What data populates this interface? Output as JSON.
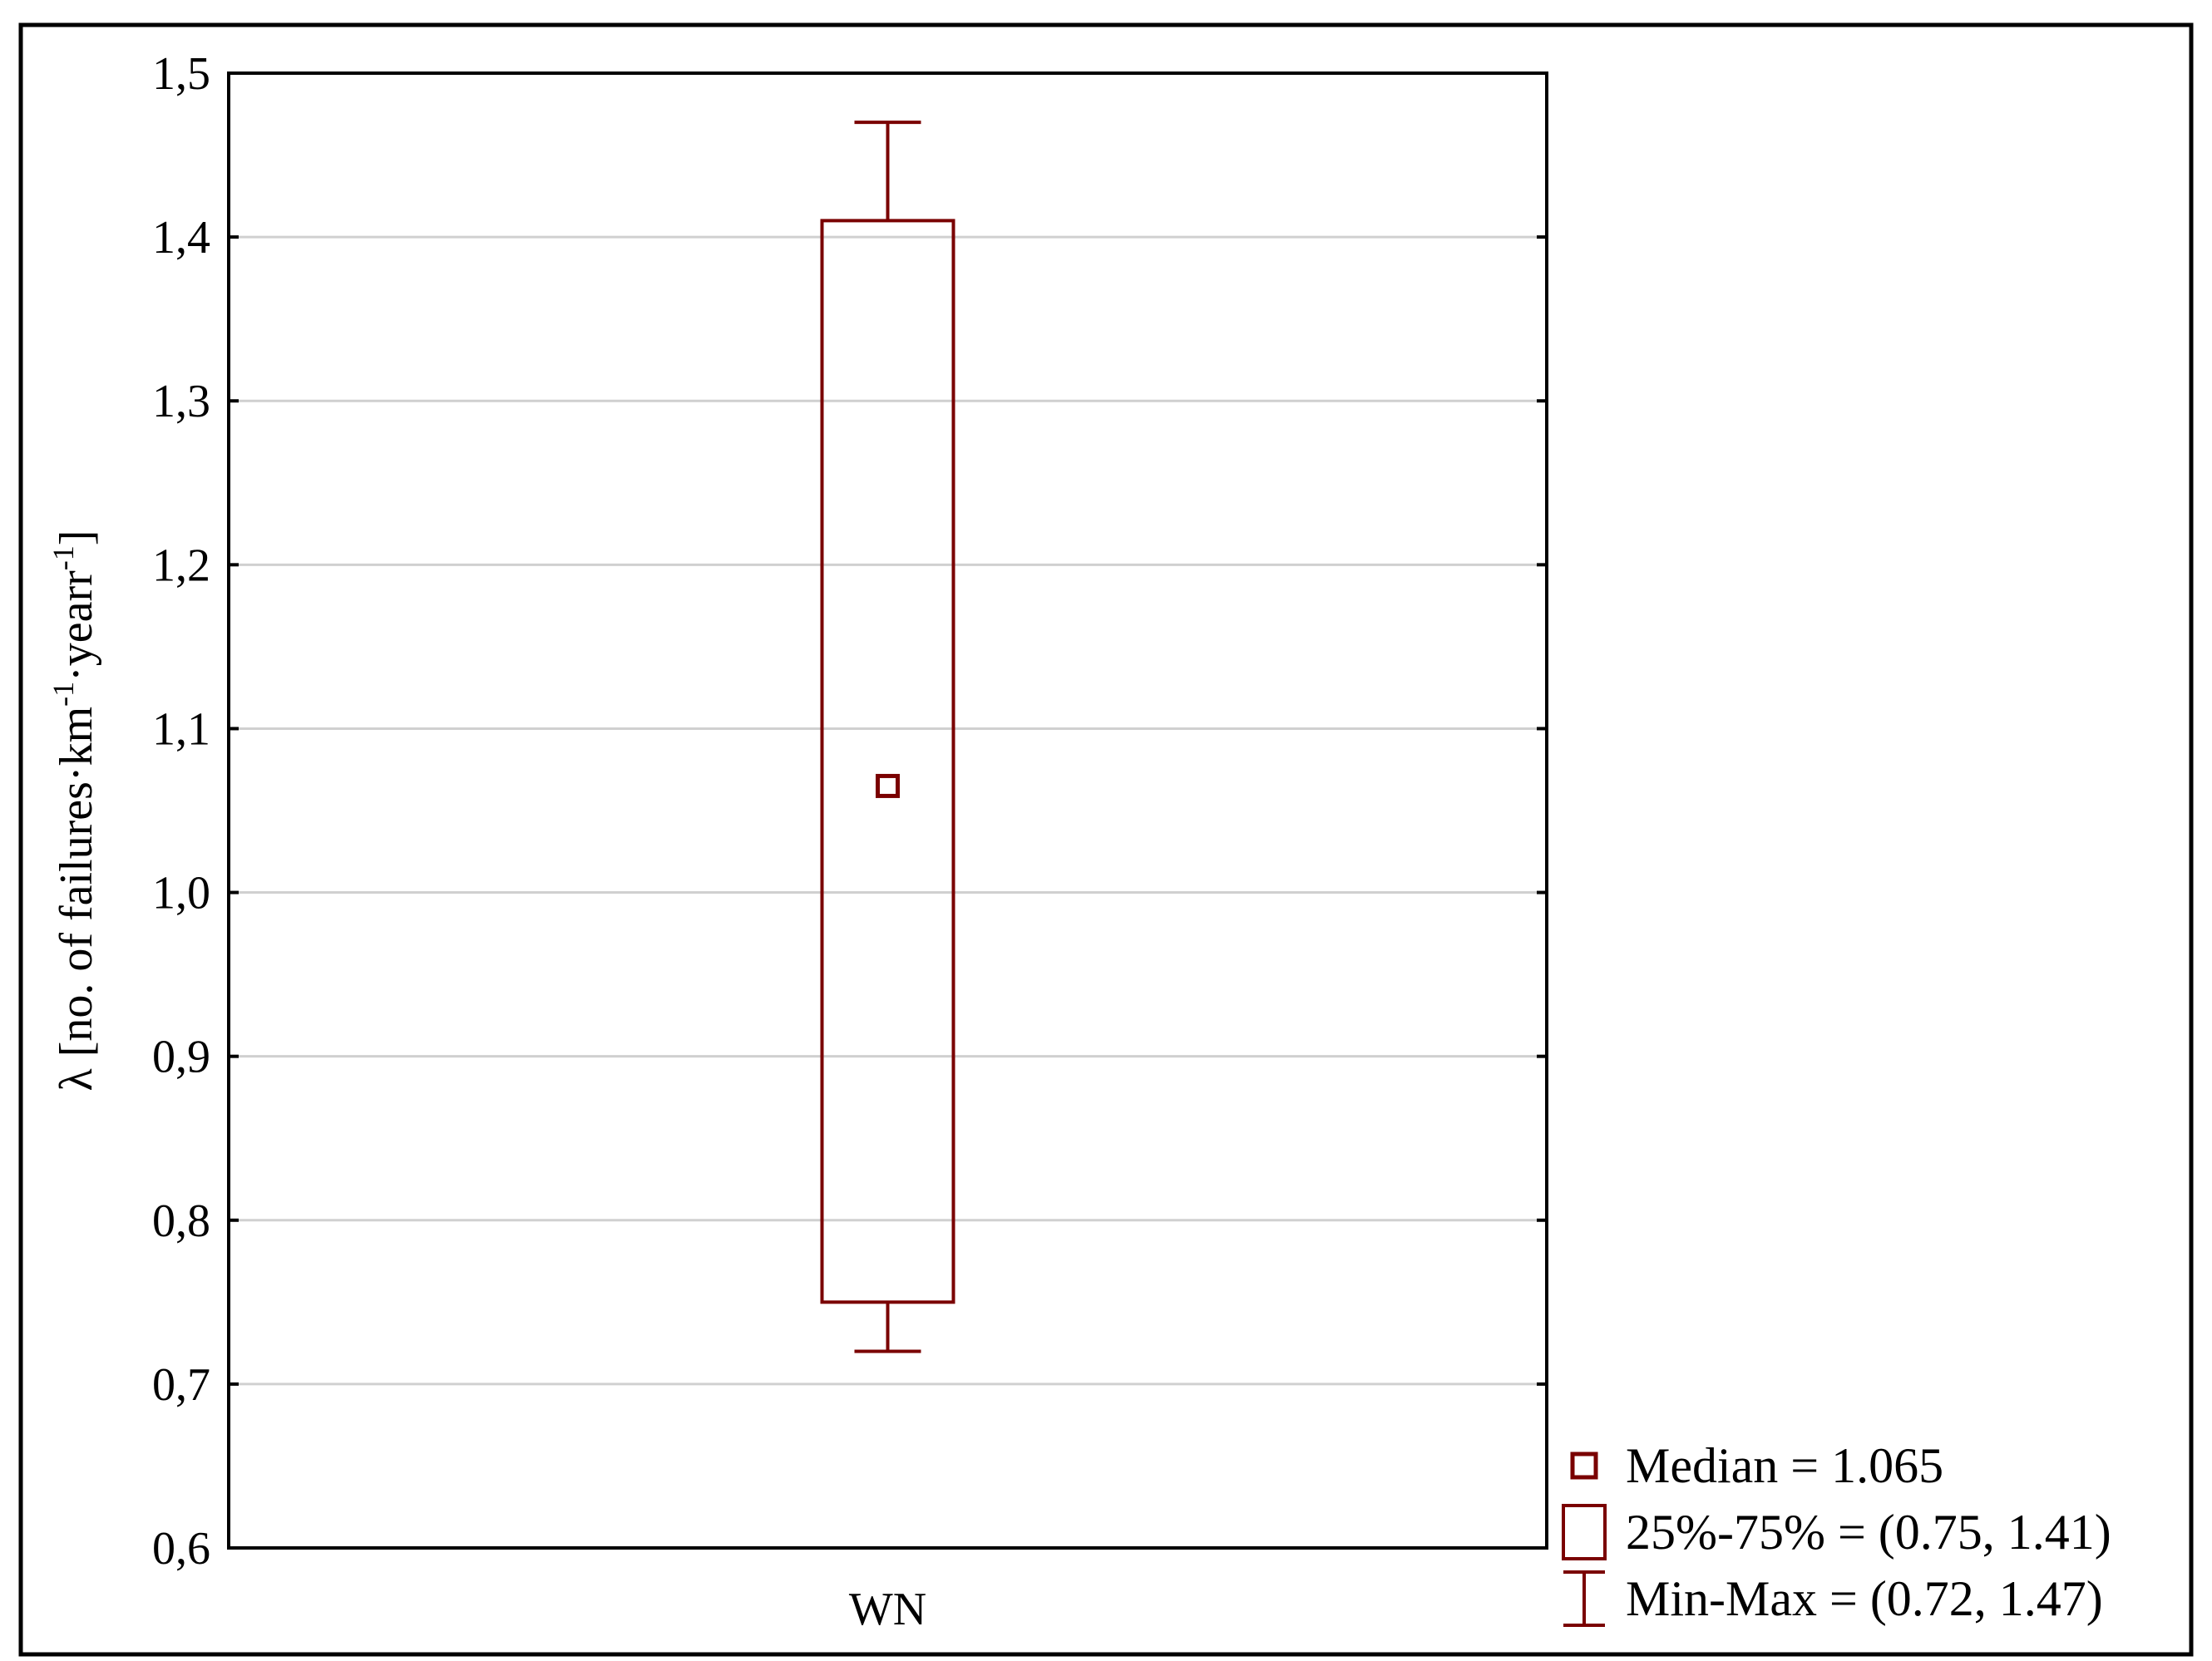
{
  "chart_data": {
    "type": "boxplot",
    "categories": [
      "WN"
    ],
    "series": [
      {
        "category": "WN",
        "min": 0.72,
        "q1": 0.75,
        "median": 1.065,
        "q3": 1.41,
        "max": 1.47
      }
    ],
    "ylabel_prefix": "λ [no. of failures·km",
    "ylabel_sup1": "-1",
    "ylabel_mid": "·yearr",
    "ylabel_sup2": "-1",
    "ylabel_suffix": "]",
    "ylim": [
      0.6,
      1.5
    ],
    "yticks": [
      0.6,
      0.7,
      0.8,
      0.9,
      1.0,
      1.1,
      1.2,
      1.3,
      1.4,
      1.5
    ],
    "ytick_labels": [
      "0,6",
      "0,7",
      "0,8",
      "0,9",
      "1,0",
      "1,1",
      "1,2",
      "1,3",
      "1,4",
      "1,5"
    ],
    "grid": "horizontal",
    "legend": {
      "placement": "bottom-right",
      "entries": [
        {
          "symbol": "median",
          "label": "Median = 1.065"
        },
        {
          "symbol": "box",
          "label": "25%-75% = (0.75, 1.41)"
        },
        {
          "symbol": "whisker",
          "label": "Min-Max = (0.72, 1.47)"
        }
      ]
    },
    "colors": {
      "series": "#7a0000",
      "grid": "#d0d0d0",
      "axis": "#000000"
    }
  }
}
